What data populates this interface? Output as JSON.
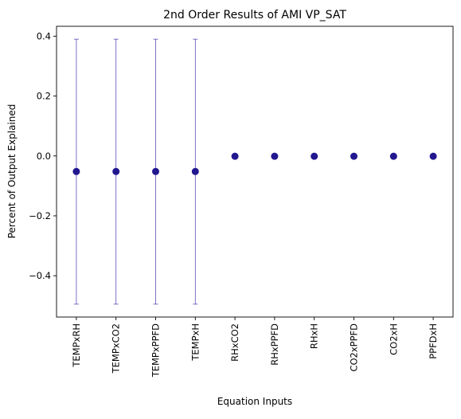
{
  "chart_data": {
    "type": "scatter",
    "title": "2nd Order Results of AMI VP_SAT",
    "xlabel": "Equation Inputs",
    "ylabel": "Percent of Output Explained",
    "categories": [
      "TEMPxRH",
      "TEMPxCO2",
      "TEMPxPPFD",
      "TEMPxH",
      "RHxCO2",
      "RHxPPFD",
      "RHxH",
      "CO2xPPFD",
      "CO2xH",
      "PPFDxH"
    ],
    "values": [
      -0.052,
      -0.052,
      -0.052,
      -0.052,
      -0.001,
      -0.001,
      -0.001,
      -0.001,
      -0.001,
      -0.001
    ],
    "error_low": [
      -0.495,
      -0.495,
      -0.495,
      -0.495,
      null,
      null,
      null,
      null,
      null,
      null
    ],
    "error_high": [
      0.39,
      0.39,
      0.39,
      0.39,
      null,
      null,
      null,
      null,
      null,
      null
    ],
    "yticks": [
      -0.4,
      -0.2,
      0.0,
      0.2,
      0.4
    ],
    "ytick_labels": [
      "−0.4",
      "−0.2",
      "0.0",
      "0.2",
      "0.4"
    ],
    "ylim": [
      -0.538,
      0.433
    ],
    "grid": false,
    "marker_color": "#22178f",
    "error_color": "#5a50b8"
  }
}
